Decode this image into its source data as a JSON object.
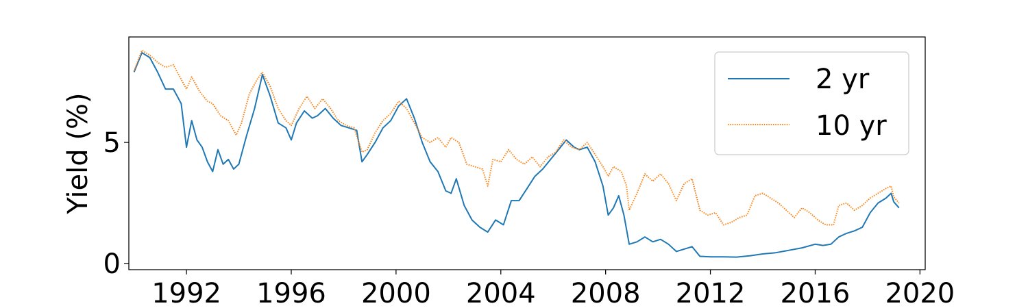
{
  "chart_data": {
    "type": "line",
    "title": "",
    "xlabel": "",
    "ylabel": "Yield (%)",
    "xlim": [
      1989.8,
      2020.2
    ],
    "ylim": [
      -0.25,
      9.35
    ],
    "x_ticks": [
      1992,
      1996,
      2000,
      2004,
      2008,
      2012,
      2016,
      2020
    ],
    "y_ticks": [
      0,
      5
    ],
    "grid": false,
    "legend_position": "top-right",
    "series": [
      {
        "name": "2 yr",
        "color": "#1f77b4",
        "line_style": "solid",
        "points": [
          [
            1990.0,
            7.9
          ],
          [
            1990.3,
            8.7
          ],
          [
            1990.6,
            8.5
          ],
          [
            1990.9,
            7.9
          ],
          [
            1991.2,
            7.2
          ],
          [
            1991.5,
            7.2
          ],
          [
            1991.8,
            6.6
          ],
          [
            1992.0,
            4.8
          ],
          [
            1992.2,
            5.9
          ],
          [
            1992.4,
            5.1
          ],
          [
            1992.6,
            4.8
          ],
          [
            1992.8,
            4.2
          ],
          [
            1993.0,
            3.8
          ],
          [
            1993.2,
            4.7
          ],
          [
            1993.4,
            4.1
          ],
          [
            1993.6,
            4.3
          ],
          [
            1993.8,
            3.9
          ],
          [
            1994.0,
            4.1
          ],
          [
            1994.3,
            5.3
          ],
          [
            1994.6,
            6.4
          ],
          [
            1994.9,
            7.8
          ],
          [
            1995.2,
            6.9
          ],
          [
            1995.5,
            5.8
          ],
          [
            1995.8,
            5.6
          ],
          [
            1996.0,
            5.1
          ],
          [
            1996.2,
            5.8
          ],
          [
            1996.5,
            6.3
          ],
          [
            1996.8,
            6.0
          ],
          [
            1997.0,
            6.1
          ],
          [
            1997.3,
            6.4
          ],
          [
            1997.6,
            6.0
          ],
          [
            1997.9,
            5.7
          ],
          [
            1998.2,
            5.6
          ],
          [
            1998.5,
            5.5
          ],
          [
            1998.7,
            4.2
          ],
          [
            1998.9,
            4.5
          ],
          [
            1999.2,
            5.0
          ],
          [
            1999.5,
            5.6
          ],
          [
            1999.8,
            5.9
          ],
          [
            2000.1,
            6.5
          ],
          [
            2000.4,
            6.8
          ],
          [
            2000.7,
            6.0
          ],
          [
            2001.0,
            5.0
          ],
          [
            2001.3,
            4.2
          ],
          [
            2001.6,
            3.8
          ],
          [
            2001.9,
            3.0
          ],
          [
            2002.1,
            2.9
          ],
          [
            2002.3,
            3.5
          ],
          [
            2002.6,
            2.4
          ],
          [
            2002.9,
            1.8
          ],
          [
            2003.2,
            1.5
          ],
          [
            2003.5,
            1.3
          ],
          [
            2003.8,
            1.8
          ],
          [
            2004.1,
            1.6
          ],
          [
            2004.4,
            2.6
          ],
          [
            2004.7,
            2.6
          ],
          [
            2005.0,
            3.1
          ],
          [
            2005.3,
            3.6
          ],
          [
            2005.6,
            3.9
          ],
          [
            2005.9,
            4.3
          ],
          [
            2006.2,
            4.7
          ],
          [
            2006.5,
            5.1
          ],
          [
            2006.8,
            4.8
          ],
          [
            2007.0,
            4.7
          ],
          [
            2007.3,
            4.8
          ],
          [
            2007.6,
            4.2
          ],
          [
            2007.9,
            3.2
          ],
          [
            2008.1,
            2.0
          ],
          [
            2008.3,
            2.3
          ],
          [
            2008.5,
            2.8
          ],
          [
            2008.7,
            2.0
          ],
          [
            2008.9,
            0.8
          ],
          [
            2009.2,
            0.9
          ],
          [
            2009.5,
            1.1
          ],
          [
            2009.8,
            0.9
          ],
          [
            2010.1,
            1.0
          ],
          [
            2010.4,
            0.8
          ],
          [
            2010.7,
            0.5
          ],
          [
            2011.0,
            0.6
          ],
          [
            2011.3,
            0.7
          ],
          [
            2011.6,
            0.3
          ],
          [
            2012.0,
            0.28
          ],
          [
            2012.5,
            0.28
          ],
          [
            2013.0,
            0.27
          ],
          [
            2013.5,
            0.32
          ],
          [
            2014.0,
            0.4
          ],
          [
            2014.5,
            0.45
          ],
          [
            2015.0,
            0.55
          ],
          [
            2015.5,
            0.65
          ],
          [
            2016.0,
            0.8
          ],
          [
            2016.3,
            0.75
          ],
          [
            2016.6,
            0.8
          ],
          [
            2016.9,
            1.1
          ],
          [
            2017.2,
            1.25
          ],
          [
            2017.5,
            1.35
          ],
          [
            2017.8,
            1.5
          ],
          [
            2018.1,
            2.1
          ],
          [
            2018.4,
            2.5
          ],
          [
            2018.7,
            2.7
          ],
          [
            2018.9,
            2.9
          ],
          [
            2019.0,
            2.55
          ],
          [
            2019.2,
            2.3
          ]
        ]
      },
      {
        "name": "10 yr",
        "color": "#ff7f0e",
        "line_style": "dotted",
        "points": [
          [
            1990.0,
            7.95
          ],
          [
            1990.3,
            8.8
          ],
          [
            1990.6,
            8.6
          ],
          [
            1990.9,
            8.3
          ],
          [
            1991.2,
            8.1
          ],
          [
            1991.5,
            8.2
          ],
          [
            1991.8,
            7.6
          ],
          [
            1992.0,
            7.2
          ],
          [
            1992.2,
            7.7
          ],
          [
            1992.5,
            7.1
          ],
          [
            1992.8,
            6.7
          ],
          [
            1993.0,
            6.6
          ],
          [
            1993.3,
            6.1
          ],
          [
            1993.6,
            5.9
          ],
          [
            1993.9,
            5.3
          ],
          [
            1994.1,
            5.8
          ],
          [
            1994.4,
            7.0
          ],
          [
            1994.7,
            7.6
          ],
          [
            1994.9,
            7.9
          ],
          [
            1995.2,
            7.3
          ],
          [
            1995.5,
            6.4
          ],
          [
            1995.8,
            5.9
          ],
          [
            1996.0,
            5.7
          ],
          [
            1996.3,
            6.4
          ],
          [
            1996.6,
            6.9
          ],
          [
            1996.9,
            6.4
          ],
          [
            1997.2,
            6.8
          ],
          [
            1997.5,
            6.4
          ],
          [
            1997.8,
            5.9
          ],
          [
            1998.1,
            5.7
          ],
          [
            1998.4,
            5.6
          ],
          [
            1998.7,
            4.6
          ],
          [
            1998.9,
            4.7
          ],
          [
            1999.2,
            5.4
          ],
          [
            1999.5,
            5.9
          ],
          [
            1999.8,
            6.2
          ],
          [
            2000.1,
            6.7
          ],
          [
            2000.4,
            6.4
          ],
          [
            2000.7,
            5.8
          ],
          [
            2001.0,
            5.2
          ],
          [
            2001.3,
            5.0
          ],
          [
            2001.6,
            5.2
          ],
          [
            2001.9,
            4.8
          ],
          [
            2002.1,
            5.2
          ],
          [
            2002.4,
            5.0
          ],
          [
            2002.7,
            4.1
          ],
          [
            2003.0,
            4.0
          ],
          [
            2003.3,
            3.9
          ],
          [
            2003.5,
            3.2
          ],
          [
            2003.7,
            4.3
          ],
          [
            2004.0,
            4.2
          ],
          [
            2004.3,
            4.7
          ],
          [
            2004.6,
            4.3
          ],
          [
            2004.9,
            4.1
          ],
          [
            2005.2,
            4.4
          ],
          [
            2005.5,
            4.0
          ],
          [
            2005.8,
            4.4
          ],
          [
            2006.1,
            4.6
          ],
          [
            2006.4,
            5.1
          ],
          [
            2006.7,
            4.8
          ],
          [
            2007.0,
            4.7
          ],
          [
            2007.3,
            5.0
          ],
          [
            2007.6,
            4.5
          ],
          [
            2007.9,
            4.0
          ],
          [
            2008.1,
            3.6
          ],
          [
            2008.3,
            4.0
          ],
          [
            2008.6,
            3.8
          ],
          [
            2008.8,
            3.2
          ],
          [
            2008.9,
            2.2
          ],
          [
            2009.2,
            2.9
          ],
          [
            2009.5,
            3.7
          ],
          [
            2009.8,
            3.4
          ],
          [
            2010.1,
            3.7
          ],
          [
            2010.4,
            3.3
          ],
          [
            2010.7,
            2.6
          ],
          [
            2011.0,
            3.3
          ],
          [
            2011.3,
            3.5
          ],
          [
            2011.6,
            2.2
          ],
          [
            2011.9,
            2.0
          ],
          [
            2012.2,
            2.1
          ],
          [
            2012.5,
            1.6
          ],
          [
            2012.8,
            1.7
          ],
          [
            2013.1,
            1.9
          ],
          [
            2013.4,
            2.0
          ],
          [
            2013.7,
            2.8
          ],
          [
            2014.0,
            2.9
          ],
          [
            2014.3,
            2.7
          ],
          [
            2014.6,
            2.5
          ],
          [
            2014.9,
            2.2
          ],
          [
            2015.2,
            1.9
          ],
          [
            2015.5,
            2.3
          ],
          [
            2015.8,
            2.1
          ],
          [
            2016.1,
            1.8
          ],
          [
            2016.4,
            1.6
          ],
          [
            2016.7,
            1.6
          ],
          [
            2016.9,
            2.4
          ],
          [
            2017.2,
            2.5
          ],
          [
            2017.5,
            2.2
          ],
          [
            2017.8,
            2.4
          ],
          [
            2018.1,
            2.7
          ],
          [
            2018.4,
            2.9
          ],
          [
            2018.7,
            3.1
          ],
          [
            2018.9,
            3.2
          ],
          [
            2019.0,
            2.75
          ],
          [
            2019.2,
            2.5
          ]
        ]
      }
    ]
  }
}
